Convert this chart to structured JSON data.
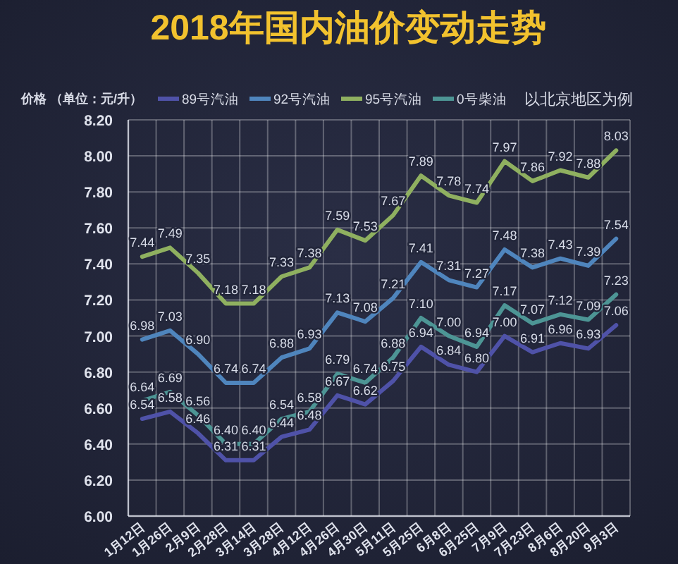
{
  "chart_data": {
    "type": "line",
    "title": "2018年国内油价变动走势",
    "ylabel": "价格 （单位：元/升）",
    "annotations": [
      "以北京地区为例"
    ],
    "categories": [
      "1月12日",
      "1月26日",
      "2月9日",
      "2月28日",
      "3月14日",
      "3月28日",
      "4月12日",
      "4月26日",
      "4月30日",
      "5月11日",
      "5月25日",
      "6月8日",
      "6月25日",
      "7月9日",
      "7月23日",
      "8月6日",
      "8月20日",
      "9月3日"
    ],
    "series": [
      {
        "name": "89号汽油",
        "color": "#4f52a8",
        "values": [
          6.54,
          6.58,
          6.46,
          6.31,
          6.31,
          6.44,
          6.48,
          6.67,
          6.62,
          6.75,
          6.94,
          6.84,
          6.8,
          7.0,
          6.91,
          6.96,
          6.93,
          7.06
        ],
        "value_labels": [
          "6.54",
          "6.58",
          "6.46",
          "6.31",
          "6.31",
          "6.44",
          "6.48",
          "6.67",
          "6.62",
          "6.75",
          "6.94",
          "6.84",
          "6.80",
          "7.00",
          "6.91",
          "6.96",
          "6.93",
          "7.06"
        ]
      },
      {
        "name": "92号汽油",
        "color": "#4f85bd",
        "values": [
          6.98,
          7.03,
          6.9,
          6.74,
          6.74,
          6.88,
          6.93,
          7.13,
          7.08,
          7.21,
          7.41,
          7.31,
          7.27,
          7.48,
          7.38,
          7.43,
          7.39,
          7.54
        ],
        "value_labels": [
          "6.98",
          "7.03",
          "6.90",
          "6.74",
          "6.74",
          "6.88",
          "6.93",
          "7.13",
          "7.08",
          "7.21",
          "7.41",
          "7.31",
          "7.27",
          "7.48",
          "7.38",
          "7.43",
          "7.39",
          "7.54"
        ]
      },
      {
        "name": "95号汽油",
        "color": "#8fb060",
        "values": [
          7.44,
          7.49,
          7.35,
          7.18,
          7.18,
          7.33,
          7.38,
          7.59,
          7.53,
          7.67,
          7.89,
          7.78,
          7.74,
          7.97,
          7.86,
          7.92,
          7.88,
          8.03
        ],
        "value_labels": [
          "7.44",
          "7.49",
          "7.35",
          "7.18",
          "7.18",
          "7.33",
          "7.38",
          "7.59",
          "7.53",
          "7.67",
          "7.89",
          "7.78",
          "7.74",
          "7.97",
          "7.86",
          "7.92",
          "7.88",
          "8.03"
        ]
      },
      {
        "name": "0号柴油",
        "color": "#4d9595",
        "values": [
          6.64,
          6.69,
          6.56,
          6.4,
          6.4,
          6.54,
          6.58,
          6.79,
          6.74,
          6.88,
          7.1,
          7.0,
          6.94,
          7.17,
          7.07,
          7.12,
          7.09,
          7.23
        ],
        "value_labels": [
          "6.64",
          "6.69",
          "6.56",
          "6.40",
          "6.40",
          "6.54",
          "6.58",
          "6.79",
          "6.74",
          "6.88",
          "7.10",
          "7.00",
          "6.94",
          "7.17",
          "7.07",
          "7.12",
          "7.09",
          "7.23"
        ]
      }
    ],
    "ylim": [
      6,
      8.2
    ],
    "yticks": [
      {
        "value": 6,
        "label": "6.00"
      },
      {
        "value": 6.2,
        "label": "6.20"
      },
      {
        "value": 6.4,
        "label": "6.40"
      },
      {
        "value": 6.6,
        "label": "6.60"
      },
      {
        "value": 6.8,
        "label": "6.80"
      },
      {
        "value": 7,
        "label": "7.00"
      },
      {
        "value": 7.2,
        "label": "7.20"
      },
      {
        "value": 7.4,
        "label": "7.40"
      },
      {
        "value": 7.6,
        "label": "7.60"
      },
      {
        "value": 7.8,
        "label": "7.80"
      },
      {
        "value": 8,
        "label": "8.00"
      },
      {
        "value": 8.2,
        "label": "8.20"
      }
    ],
    "grid": true,
    "legend": "top",
    "line_style": "solid"
  }
}
